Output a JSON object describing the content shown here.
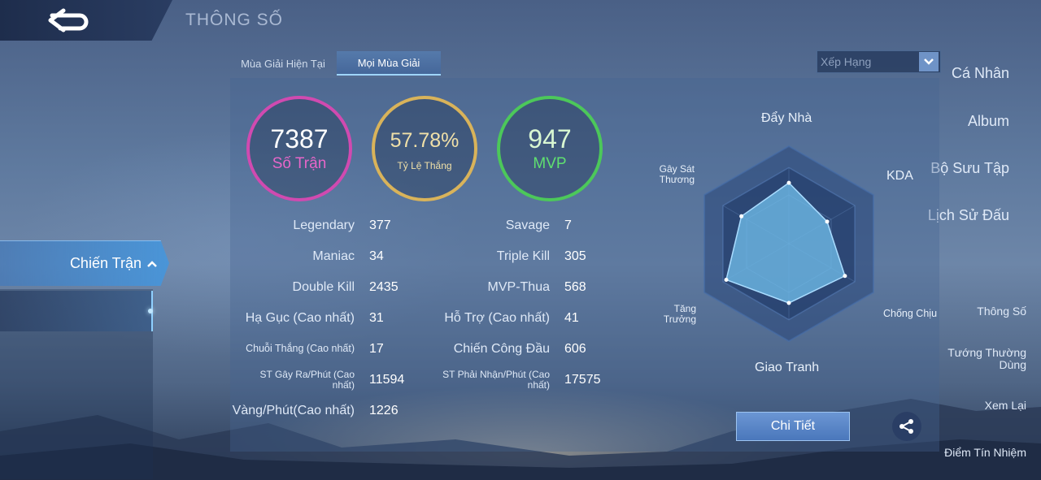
{
  "header": {
    "title": "THÔNG SỐ"
  },
  "sidebar": {
    "items": [
      "Cá Nhân",
      "Album",
      "Bộ Sưu Tập",
      "Lịch Sử Đấu"
    ],
    "active": "Chiến Trận",
    "sub_items": [
      "Thông Số",
      "Tướng Thường Dùng",
      "Xem Lại",
      "Điểm Tín Nhiệm"
    ]
  },
  "tabs": [
    "Mùa Giải Hiện Tại",
    "Mọi Mùa Giải"
  ],
  "dropdown": {
    "value": "Xếp Hạng"
  },
  "summary": {
    "matches": {
      "value": "7387",
      "label": "Số Trận"
    },
    "winrate": {
      "value": "57.78%",
      "label": "Tỷ Lệ Thắng"
    },
    "mvp": {
      "value": "947",
      "label": "MVP"
    }
  },
  "stats_left": [
    {
      "label": "Legendary",
      "value": "377"
    },
    {
      "label": "Maniac",
      "value": "34"
    },
    {
      "label": "Double Kill",
      "value": "2435"
    },
    {
      "label": "Hạ Gục (Cao nhất)",
      "value": "31"
    },
    {
      "label": "Chuỗi Thắng (Cao nhất)",
      "value": "17"
    },
    {
      "label": "ST Gây Ra/Phút (Cao nhất)",
      "value": "11594"
    },
    {
      "label": "Vàng/Phút(Cao nhất)",
      "value": "1226"
    }
  ],
  "stats_right": [
    {
      "label": "Savage",
      "value": "7"
    },
    {
      "label": "Triple Kill",
      "value": "305"
    },
    {
      "label": "MVP-Thua",
      "value": "568"
    },
    {
      "label": "Hỗ Trợ (Cao nhất)",
      "value": "41"
    },
    {
      "label": "Chiến Công Đầu",
      "value": "606"
    },
    {
      "label": "ST Phải Nhận/Phút (Cao nhất)",
      "value": "17575"
    }
  ],
  "radar": {
    "labels": {
      "top": "Đẩy Nhà",
      "top_right": "KDA",
      "bottom_right": "Chống Chịu",
      "bottom": "Giao Tranh",
      "bottom_left": "Tăng Trưởng",
      "top_left": "Gây Sát Thương"
    },
    "levels": [
      0.8,
      0.58,
      0.85,
      0.78,
      0.95,
      0.72
    ]
  },
  "buttons": {
    "detail": "Chi Tiết"
  },
  "colors": {
    "matches": "#d04ab0",
    "winrate": "#d9b35a",
    "mvp": "#4cc85a",
    "accent": "#9fd5ff"
  }
}
